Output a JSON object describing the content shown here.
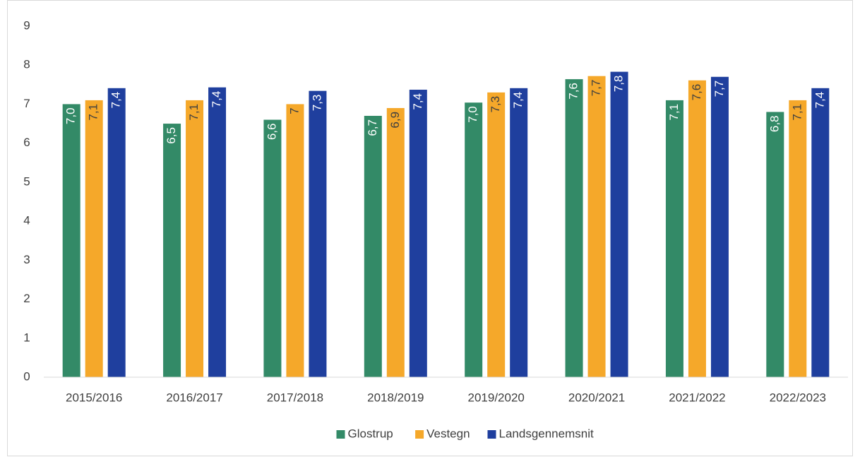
{
  "chart_data": {
    "type": "bar",
    "categories": [
      "2015/2016",
      "2016/2017",
      "2017/2018",
      "2018/2019",
      "2019/2020",
      "2020/2021",
      "2021/2022",
      "2022/2023"
    ],
    "series": [
      {
        "name": "Glostrup",
        "color": "#338a67",
        "values": [
          7.0,
          6.5,
          6.6,
          6.7,
          7.04,
          7.64,
          7.1,
          6.8
        ],
        "value_labels": [
          "7,0",
          "6,5",
          "6,6",
          "6,7",
          "7,0",
          "7,6",
          "7,1",
          "6,8"
        ]
      },
      {
        "name": "Vestegn",
        "color": "#f5a82a",
        "values": [
          7.1,
          7.1,
          7.0,
          6.9,
          7.3,
          7.72,
          7.61,
          7.1
        ],
        "value_labels": [
          "7,1",
          "7,1",
          "7",
          "6,9",
          "7,3",
          "7,7",
          "7,6",
          "7,1"
        ]
      },
      {
        "name": "Landsgennemsnit",
        "color": "#1f3f9e",
        "values": [
          7.41,
          7.43,
          7.34,
          7.37,
          7.41,
          7.83,
          7.7,
          7.41
        ],
        "value_labels": [
          "7,4",
          "7,4",
          "7,3",
          "7,4",
          "7,4",
          "7,8",
          "7,7",
          "7,4"
        ]
      }
    ],
    "ylim": [
      0,
      9
    ],
    "yticks": [
      0,
      1,
      2,
      3,
      4,
      5,
      6,
      7,
      8,
      9
    ],
    "grid": false,
    "legend": "bottom"
  }
}
